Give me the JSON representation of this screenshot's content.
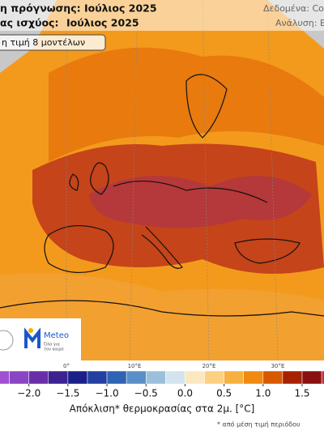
{
  "header": {
    "forecast_line": "η πρόγνωσης: Ιούλιος 2025",
    "validity_label": "ας ισχύος:",
    "validity_value": "Ιούλιος 2025",
    "source": "Δεδομένα: Copern",
    "analysis": "Ανάλυση: ΕΑ",
    "badge": "η τιμή 8 μοντέλων"
  },
  "map": {
    "longitude_labels": [
      "0°",
      "10°E",
      "20°E",
      "30°E"
    ]
  },
  "logo": {
    "name": "Meteo",
    "tagline": [
      "Όλα για",
      "τον καιρό"
    ]
  },
  "colorbar": {
    "xlim": [
      -2.37,
      1.78
    ],
    "bins": [
      -2.5,
      -2.25,
      -2.0,
      -1.75,
      -1.5,
      -1.25,
      -1.0,
      -0.75,
      -0.5,
      -0.25,
      0,
      0.25,
      0.5,
      0.75,
      1.0,
      1.25,
      1.5,
      1.75,
      2.0,
      2.25
    ],
    "colors": [
      "#a050d0",
      "#8a45c4",
      "#6a2fa8",
      "#3b2290",
      "#1c1f8a",
      "#2340a0",
      "#2f63b4",
      "#5a8ec8",
      "#9cc0dc",
      "#d4e4ee",
      "#fbe8c0",
      "#fcd080",
      "#f8b040",
      "#f08a10",
      "#d85a00",
      "#a82000",
      "#8a1010",
      "#c03030",
      "#d86060"
    ],
    "ticks": [
      {
        "value": -2.0,
        "label": "−2.0"
      },
      {
        "value": -1.5,
        "label": "−1.5"
      },
      {
        "value": -1.0,
        "label": "−1.0"
      },
      {
        "value": -0.5,
        "label": "−0.5"
      },
      {
        "value": 0,
        "label": "0.0"
      },
      {
        "value": 0.5,
        "label": "0.5"
      },
      {
        "value": 1.0,
        "label": "1.0"
      },
      {
        "value": 1.5,
        "label": "1.5"
      }
    ],
    "label": "Απόκλιση* θερμοκρασίας στα 2μ. [°C]",
    "footnote": "* από μέση τιμή περιόδου"
  }
}
